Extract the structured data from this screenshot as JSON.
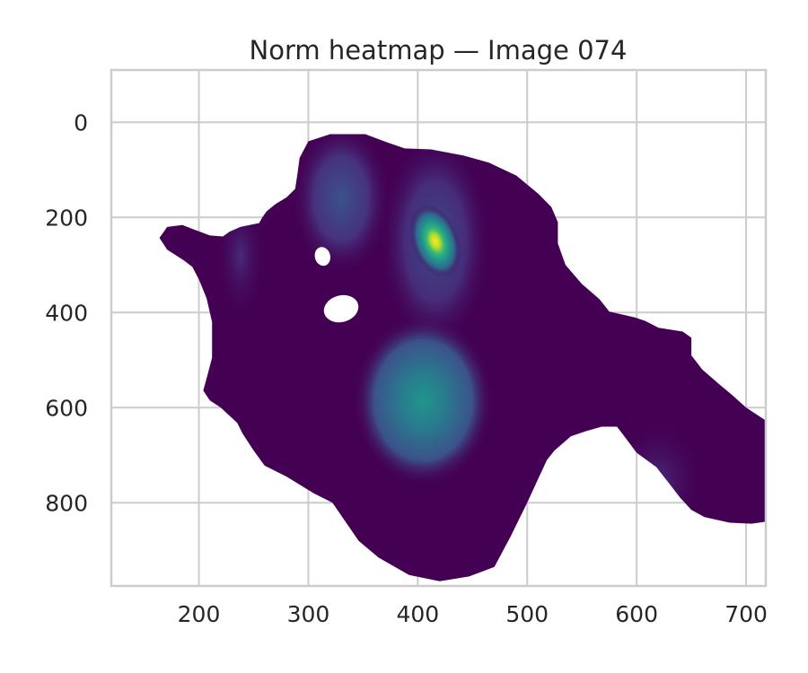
{
  "chart_data": {
    "type": "heatmap",
    "title": "Norm heatmap — Image 074",
    "xlabel": "",
    "ylabel": "",
    "xlim": [
      120,
      718
    ],
    "ylim": [
      975,
      -110
    ],
    "x_ticks": [
      200,
      300,
      400,
      500,
      600,
      700
    ],
    "y_ticks": [
      0,
      200,
      400,
      600,
      800
    ],
    "x_tick_labels": [
      "200",
      "300",
      "400",
      "500",
      "600",
      "700"
    ],
    "y_tick_labels": [
      "0",
      "200",
      "400",
      "600",
      "800"
    ],
    "grid": true,
    "colormap": "viridis",
    "colors": {
      "low": "#440154",
      "mid": "#21918c",
      "high": "#fde725",
      "grid": "#cccccc",
      "background": "#ffffff"
    },
    "density_peaks": [
      {
        "x": 416,
        "y": 250,
        "level": 1.0
      },
      {
        "x": 405,
        "y": 585,
        "level": 0.55
      },
      {
        "x": 330,
        "y": 160,
        "level": 0.35
      },
      {
        "x": 620,
        "y": 755,
        "level": 0.12
      },
      {
        "x": 238,
        "y": 280,
        "level": 0.06
      }
    ],
    "density_outline": [
      [
        300,
        40
      ],
      [
        320,
        25
      ],
      [
        352,
        25
      ],
      [
        372,
        42
      ],
      [
        388,
        55
      ],
      [
        412,
        57
      ],
      [
        442,
        70
      ],
      [
        465,
        85
      ],
      [
        490,
        112
      ],
      [
        510,
        150
      ],
      [
        522,
        178
      ],
      [
        528,
        210
      ],
      [
        528,
        255
      ],
      [
        535,
        300
      ],
      [
        550,
        340
      ],
      [
        566,
        372
      ],
      [
        575,
        398
      ],
      [
        598,
        410
      ],
      [
        608,
        418
      ],
      [
        620,
        432
      ],
      [
        642,
        440
      ],
      [
        650,
        453
      ],
      [
        650,
        490
      ],
      [
        660,
        520
      ],
      [
        675,
        550
      ],
      [
        688,
        575
      ],
      [
        700,
        600
      ],
      [
        720,
        630
      ],
      [
        740,
        660
      ],
      [
        748,
        680
      ],
      [
        765,
        700
      ],
      [
        775,
        720
      ],
      [
        790,
        740
      ],
      [
        800,
        762
      ],
      [
        805,
        790
      ],
      [
        800,
        810
      ],
      [
        775,
        820
      ],
      [
        755,
        828
      ],
      [
        730,
        836
      ],
      [
        705,
        844
      ],
      [
        685,
        842
      ],
      [
        662,
        830
      ],
      [
        650,
        815
      ],
      [
        640,
        790
      ],
      [
        630,
        760
      ],
      [
        618,
        725
      ],
      [
        600,
        695
      ],
      [
        588,
        658
      ],
      [
        582,
        640
      ],
      [
        568,
        640
      ],
      [
        553,
        650
      ],
      [
        540,
        660
      ],
      [
        525,
        690
      ],
      [
        518,
        710
      ],
      [
        510,
        750
      ],
      [
        500,
        800
      ],
      [
        485,
        870
      ],
      [
        470,
        935
      ],
      [
        447,
        955
      ],
      [
        420,
        965
      ],
      [
        392,
        952
      ],
      [
        364,
        915
      ],
      [
        346,
        880
      ],
      [
        334,
        840
      ],
      [
        322,
        800
      ],
      [
        305,
        780
      ],
      [
        280,
        745
      ],
      [
        260,
        722
      ],
      [
        250,
        690
      ],
      [
        240,
        655
      ],
      [
        235,
        632
      ],
      [
        220,
        600
      ],
      [
        210,
        585
      ],
      [
        204,
        564
      ],
      [
        208,
        530
      ],
      [
        212,
        495
      ],
      [
        212,
        462
      ],
      [
        212,
        420
      ],
      [
        207,
        370
      ],
      [
        200,
        330
      ],
      [
        194,
        304
      ],
      [
        186,
        290
      ],
      [
        171,
        268
      ],
      [
        164,
        243
      ],
      [
        171,
        220
      ],
      [
        185,
        216
      ],
      [
        195,
        225
      ],
      [
        210,
        238
      ],
      [
        222,
        240
      ],
      [
        228,
        230
      ],
      [
        238,
        220
      ],
      [
        255,
        212
      ],
      [
        258,
        200
      ],
      [
        262,
        187
      ],
      [
        270,
        172
      ],
      [
        280,
        158
      ],
      [
        288,
        140
      ],
      [
        290,
        110
      ],
      [
        292,
        75
      ]
    ],
    "density_holes": [
      {
        "cx": 313,
        "cy": 282,
        "rx": 7,
        "ry": 20
      },
      {
        "cx": 330,
        "cy": 392,
        "rx": 16,
        "ry": 28
      }
    ],
    "density_islands": [
      {
        "cx": 250,
        "cy": 502,
        "rx": 18,
        "ry": 36
      },
      {
        "cx": 230,
        "cy": 557,
        "rx": 4,
        "ry": 4
      }
    ]
  }
}
